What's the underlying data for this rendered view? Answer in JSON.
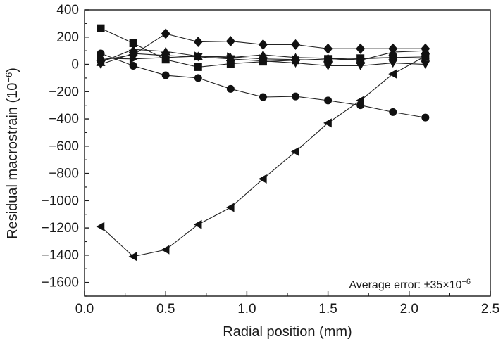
{
  "chart_data": {
    "type": "scatter",
    "xlabel": "Radial position (mm)",
    "ylabel": "Residual macrostrain (10",
    "ylabel_exp": "−6",
    "ylabel_close": ")",
    "xlim": [
      0.0,
      2.5
    ],
    "ylim": [
      -1700,
      400
    ],
    "xticks": [
      0.0,
      0.5,
      1.0,
      1.5,
      2.0,
      2.5
    ],
    "xtick_labels": [
      "0.0",
      "0.5",
      "1.0",
      "1.5",
      "2.0",
      "2.5"
    ],
    "yticks": [
      400,
      200,
      0,
      -200,
      -400,
      -600,
      -800,
      -1000,
      -1200,
      -1400,
      -1600
    ],
    "ytick_labels": [
      "400",
      "200",
      "0",
      "−200",
      "−400",
      "−600",
      "−800",
      "−1000",
      "−1200",
      "−1400",
      "−1600"
    ],
    "annotation": "Average error: ±35×10",
    "annotation_exp": "−6",
    "x": [
      0.1,
      0.3,
      0.5,
      0.7,
      0.9,
      1.1,
      1.3,
      1.5,
      1.7,
      1.9,
      2.1
    ],
    "series": [
      {
        "marker": "square",
        "values": [
          265,
          155,
          35,
          -20,
          5,
          20,
          30,
          40,
          45,
          50,
          55
        ]
      },
      {
        "marker": "circle",
        "values": [
          80,
          -10,
          -80,
          -100,
          -180,
          -240,
          -235,
          -265,
          -300,
          -350,
          -390
        ]
      },
      {
        "marker": "triangle-up",
        "values": [
          15,
          110,
          95,
          60,
          50,
          70,
          50,
          45,
          30,
          90,
          100
        ]
      },
      {
        "marker": "triangle-down",
        "values": [
          0,
          80,
          65,
          55,
          40,
          25,
          10,
          -10,
          -10,
          10,
          0
        ]
      },
      {
        "marker": "diamond",
        "values": [
          30,
          70,
          225,
          165,
          170,
          145,
          145,
          115,
          115,
          115,
          115
        ]
      },
      {
        "marker": "triangle-left",
        "values": [
          -1190,
          -1410,
          -1360,
          -1175,
          -1050,
          -840,
          -640,
          -430,
          -265,
          -70,
          60
        ]
      },
      {
        "marker": "triangle-right",
        "values": [
          45,
          40,
          50,
          60,
          55,
          40,
          35,
          30,
          40,
          50,
          45
        ]
      }
    ],
    "grid": false,
    "legend": "none"
  }
}
